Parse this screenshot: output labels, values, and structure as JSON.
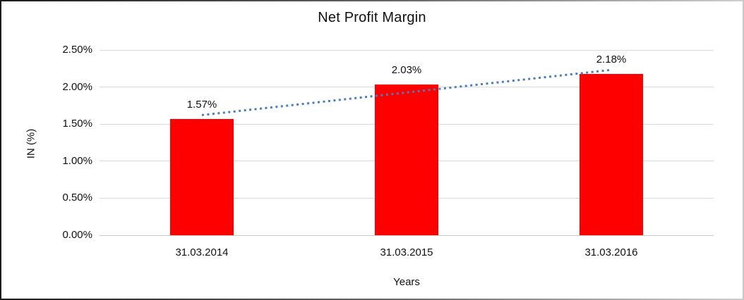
{
  "chart_data": {
    "type": "bar",
    "title": "Net Profit Margin",
    "xlabel": "Years",
    "ylabel": "IN (%)",
    "categories": [
      "31.03.2014",
      "31.03.2015",
      "31.03.2016"
    ],
    "values": [
      1.57,
      2.03,
      2.18
    ],
    "data_labels": [
      "1.57%",
      "2.03%",
      "2.18%"
    ],
    "ylim": [
      0,
      2.5
    ],
    "ytick_step": 0.5,
    "ytick_labels": [
      "0.00%",
      "0.50%",
      "1.00%",
      "1.50%",
      "2.00%",
      "2.50%"
    ],
    "grid": true,
    "legend": false,
    "trendline": {
      "type": "linear",
      "style": "dotted"
    },
    "colors": {
      "bar": "#FF0000",
      "trendline": "#4A7EBB",
      "gridline": "#D9D9D9",
      "text": "#111111",
      "background": "#FFFFFF"
    }
  }
}
